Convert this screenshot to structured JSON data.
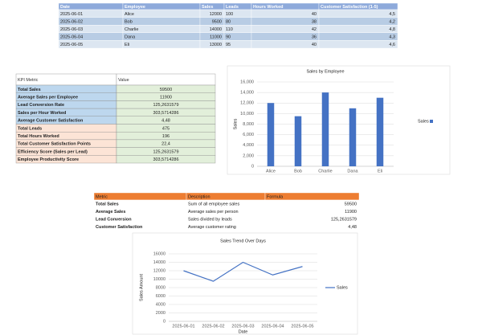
{
  "employee_table": {
    "columns": [
      "Date",
      "Employee",
      "Sales",
      "Leads",
      "Hours Worked",
      "Customer Satisfaction (1-5)"
    ],
    "rows": [
      [
        "2025-06-01",
        "Alice",
        "12000",
        "100",
        "40",
        "4,5"
      ],
      [
        "2025-06-02",
        "Bob",
        "9500",
        "80",
        "38",
        "4,2"
      ],
      [
        "2025-06-03",
        "Charlie",
        "14000",
        "110",
        "42",
        "4,8"
      ],
      [
        "2025-06-04",
        "Dana",
        "11000",
        "90",
        "36",
        "4,3"
      ],
      [
        "2025-06-05",
        "Eli",
        "13000",
        "95",
        "40",
        "4,6"
      ]
    ]
  },
  "kpi_table": {
    "columns": [
      "KPI Metric",
      "Value"
    ],
    "rows": [
      [
        "Total Sales",
        "59500"
      ],
      [
        "Average Sales per Employee",
        "11900"
      ],
      [
        "Lead Conversion Rate",
        "125,2631579"
      ],
      [
        "Sales per Hour Worked",
        "303,5714286"
      ],
      [
        "Average Customer Satisfaction",
        "4,48"
      ],
      [
        "Total Leads",
        "475"
      ],
      [
        "Total Hours Worked",
        "196"
      ],
      [
        "Total Customer Satisfaction Points",
        "22,4"
      ],
      [
        "Efficiency Score (Sales per Lead)",
        "125,2631579"
      ],
      [
        "Employee Productivity Score",
        "303,5714286"
      ]
    ]
  },
  "formula_table": {
    "columns": [
      "Metric",
      "Description",
      "Formula"
    ],
    "rows": [
      [
        "Total Sales",
        "Sum of all employee sales",
        "59500"
      ],
      [
        "Average Sales",
        "Average sales per person",
        "11900"
      ],
      [
        "Lead Conversion",
        "Sales divided by leads",
        "125,2631579"
      ],
      [
        "Customer Satisfaction",
        "Average customer rating",
        "4,48"
      ]
    ]
  },
  "chart_data": [
    {
      "type": "bar",
      "title": "Sales by Employee",
      "ylabel": "Sales",
      "categories": [
        "Alice",
        "Bob",
        "Charlie",
        "Dana",
        "Eli"
      ],
      "series": [
        {
          "name": "Sales",
          "color": "#4472c4",
          "values": [
            12000,
            9500,
            14000,
            11000,
            13000
          ]
        }
      ],
      "ylim": [
        0,
        16000
      ],
      "yticks": [
        0,
        {
          "value": 2000,
          "label": "2,000"
        },
        {
          "value": 4000,
          "label": "4,000"
        },
        {
          "value": 6000,
          "label": "6,000"
        },
        {
          "value": 8000,
          "label": "8,000"
        },
        {
          "value": 10000,
          "label": "10,000"
        },
        {
          "value": 12000,
          "label": "12,000"
        },
        {
          "value": 14000,
          "label": "14,000"
        },
        {
          "value": 16000,
          "label": "16,000"
        }
      ],
      "grid": true,
      "legend": "right"
    },
    {
      "type": "line",
      "title": "Sales Trend Over Days",
      "xlabel": "Date",
      "ylabel": "Sales Amount",
      "x": [
        "2025-06-01",
        "2025-06-02",
        "2025-06-03",
        "2025-06-04",
        "2025-06-05"
      ],
      "series": [
        {
          "name": "Sales",
          "color": "#4472c4",
          "values": [
            12000,
            9500,
            14000,
            11000,
            13000
          ]
        }
      ],
      "ylim": [
        0,
        16000
      ],
      "yticks": [
        0,
        2000,
        4000,
        6000,
        8000,
        10000,
        12000,
        14000,
        16000
      ],
      "grid": true,
      "legend": "right"
    }
  ]
}
